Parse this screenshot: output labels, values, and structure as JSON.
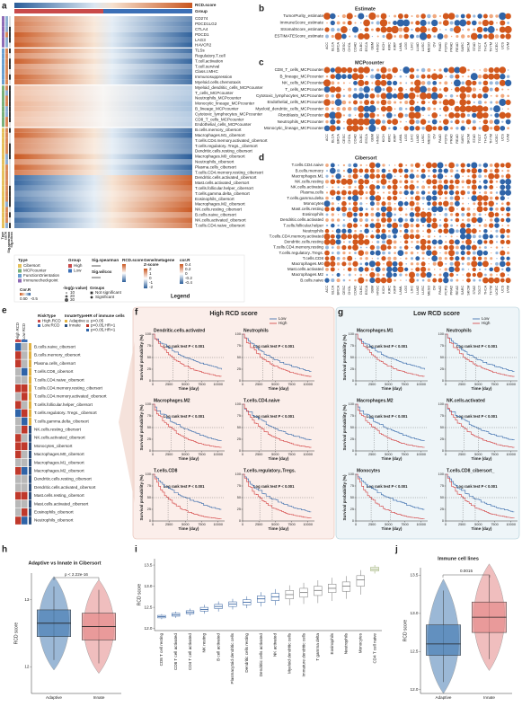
{
  "panel_a": {
    "letter": "a",
    "score_label": "RCD.score",
    "group_label": "Group",
    "rows": [
      "CD274",
      "PDCD1LG2",
      "CTLA4",
      "PDCD1",
      "LAG3",
      "HAVCR2",
      "TLSs",
      "Regulatory.T.cell",
      "T.cell.activation",
      "T.cell.survival",
      "Class.I.MHC",
      "Immunosuppression",
      "Myeloid.cells.chemotaxis",
      "Myeloid_dendritic_cells_MCPcounter",
      "T_cells_MCPcounter",
      "Neutrophils_MCPcounter",
      "Monocytic_lineage_MCPcounter",
      "B_lineage_MCPcounter",
      "Cytotoxic_lymphocytes_MCPcounter",
      "CD8_T_cells_MCPcounter",
      "Endothelial_cells_MCPcounter",
      "B.cells.memory_cibersort",
      "Macrophages.M1_cibersort",
      "T.cells.CD4.memory.activated_cibersort",
      "T.cells.regulatory..Tregs._cibersort",
      "Dendritic.cells.resting_cibersort",
      "Macrophages.M0_cibersort",
      "Neutrophils_cibersort",
      "Plasma.cells_cibersort",
      "T.cells.CD4.memory.resting_cibersort",
      "Dendritic.cells.activated_cibersort",
      "Mast.cells.activated_cibersort",
      "T.cells.follicular.helper_cibersort",
      "T.cells.gamma.delta_cibersort",
      "Eosinophils_cibersort",
      "Macrophages.M2_cibersort",
      "NK.cells.resting_cibersort",
      "B.cells.naive_cibersort",
      "NK.cells.activated_cibersort",
      "T.cells.CD4.naive_cibersort"
    ],
    "side_labels": [
      "Tpye",
      "cor.R",
      "Sig.spearman",
      "Sig.wilcox"
    ],
    "legend": {
      "type_title": "Tpye",
      "types": [
        "Cibersort",
        "MCPcounter",
        "FunctionOrientation",
        "Immunecheckpoint"
      ],
      "group_title": "Group",
      "groups": [
        "High",
        "Low"
      ],
      "spearman": "Sig.spearman",
      "wilcox": "Sig.wilcox",
      "score": "RCD.score",
      "z_title": "Gene/metagene",
      "z_sub": "Z-score",
      "z_ticks": [
        2,
        1,
        0,
        -1,
        -2
      ],
      "cor_title": "cor.R",
      "cor_ticks": [
        0.4,
        0.2,
        0,
        -0.2,
        -0.4
      ],
      "cor2_title": "Cor.R",
      "cor2_ticks": [
        0.5,
        0,
        -0.5
      ],
      "logp_title": "-log(p value)",
      "logp_ticks": [
        10,
        20,
        30
      ],
      "groups_title": "Groups",
      "sig": [
        "Not significant",
        "Significant"
      ],
      "legend_title": "Legend"
    }
  },
  "cancer_types": [
    "ACC",
    "BLCA",
    "BRCA",
    "CESC",
    "CHOL",
    "COAD",
    "DLBC",
    "ESCA",
    "GBM",
    "HNSC",
    "KICH",
    "KIRC",
    "KIRP",
    "LAML",
    "LGG",
    "LIHC",
    "LUAD",
    "LUSC",
    "MESO",
    "OV",
    "PAAD",
    "PCPG",
    "PRAD",
    "READ",
    "SARC",
    "SKCM",
    "STAD",
    "TGCT",
    "THCA",
    "THYM",
    "UCEC",
    "UCS",
    "UVM"
  ],
  "panel_b": {
    "letter": "b",
    "title": "Estimate",
    "rows": [
      "TumorPurity_estimate",
      "ImmuneScore_estimate",
      "StromalScore_estimate",
      "ESTIMATEScore_estimate"
    ]
  },
  "panel_c": {
    "letter": "c",
    "title": "MCPcounter",
    "rows": [
      "CD8_T_cells_MCPcounter",
      "B_lineage_MCPcounter",
      "NK_cells_MCPcounter",
      "T_cells_MCPcounter",
      "Cytotoxic_lymphocytes_MCPcounter",
      "Endothelial_cells_MCPcounter",
      "Myeloid_dendritic_cells_MCPcounter",
      "Fibroblasts_MCPcounter",
      "Neutrophils_MCPcounter",
      "Monocytic_lineage_MCPcounter"
    ]
  },
  "panel_d": {
    "letter": "d",
    "title": "Cibersort",
    "rows": [
      "T.cells.CD4.naive",
      "B.cells.memory",
      "Macrophages.M1",
      "NK.cells.resting",
      "NK.cells.activated",
      "Plasma.cells",
      "T.cells.gamma.delta",
      "Monocytes",
      "Mast.cells.resting",
      "Eosinophils",
      "Dendritic.cells.activated",
      "T.cells.follicular.helper",
      "Neutrophils",
      "T.cells.CD4.memory.activated",
      "Dendritic.cells.resting",
      "T.cells.CD4.memory.resting",
      "T.cells.regulatory..Tregs.",
      "T.cells.CD8",
      "Macrophages.M0",
      "Mast.cells.activated",
      "Macrophages.M2",
      "B.cells.naive"
    ]
  },
  "panel_e": {
    "letter": "e",
    "columns": [
      "High RCD",
      "Low RCD"
    ],
    "risk_title": "RiskType",
    "risk": [
      "High.RCD",
      "Low.RCD"
    ],
    "innate_title": "InnateType",
    "innate": [
      "Adaptive",
      "Innate"
    ],
    "hr_title": "HR of immune cells",
    "hr": [
      "p>0.05",
      "p<0.05,HR>1",
      "p<0.05,HR<1"
    ],
    "rows": [
      "B.cells.naive_cibersort",
      "B.cells.memory_cibersort",
      "Plasma.cells_cibersort",
      "T.cells.CD8_cibersort",
      "T.cells.CD4.naive_cibersort",
      "T.cells.CD4.memory.resting_cibersort",
      "T.cells.CD4.memory.activated_cibersort",
      "T.cells.follicular.helper_cibersort",
      "T.cells.regulatory..Tregs._cibersort",
      "T.cells.gamma.delta_cibersort",
      "NK.cells.resting_cibersort",
      "NK.cells.activated_cibersort",
      "Monocytes_cibersort",
      "Macrophages.M0_cibersort",
      "Macrophages.M1_cibersort",
      "Macrophages.M2_cibersort",
      "Dendritic.cells.resting_cibersort",
      "Dendritic.cells.activated_cibersort",
      "Mast.cells.resting_cibersort",
      "Mast.cells.activated_cibersort",
      "Eosinophils_cibersort",
      "Neutrophils_cibersort"
    ]
  },
  "panel_f": {
    "letter": "f",
    "title": "High RCD score",
    "legend": [
      "Low",
      "High"
    ],
    "ylabel": "Survival probability (%)",
    "xlabel": "Time (day)",
    "test": "Log rank test P < 0.001",
    "xticks": [
      0,
      2500,
      5000,
      7500,
      10000
    ],
    "yticks": [
      0,
      25,
      50,
      75,
      100
    ],
    "xlim": [
      0,
      11000
    ],
    "ylim": [
      0,
      100
    ],
    "plots": [
      "Dendritic.cells.activated",
      "Neutrophils",
      "Macrophages.M2",
      "T.cells.CD4.naive",
      "T.cells.CD8",
      "T.cells.regulatory..Tregs."
    ]
  },
  "panel_g": {
    "letter": "g",
    "title": "Low RCD score",
    "legend": [
      "Low",
      "High"
    ],
    "ylabel": "Survival probability (%)",
    "xlabel": "Time (day)",
    "test": "Log rank test P < 0.001",
    "xticks": [
      0,
      2500,
      5000,
      7500,
      10000
    ],
    "yticks": [
      0,
      25,
      50,
      75,
      100
    ],
    "xlim": [
      0,
      11000
    ],
    "ylim": [
      0,
      100
    ],
    "plots": [
      "Macrophages.M1",
      "Neutrophils",
      "Macrophages.M2",
      "NK.cells.activated",
      "Monocytes",
      "T.cells.CD8_cibersort_"
    ]
  },
  "panel_h": {
    "letter": "h",
    "title": "Adaptive vs Innate in Cibersort",
    "pvalue": "p < 2.22e-16",
    "ylabel": "RCD score",
    "categories": [
      "Adaptive",
      "Innate"
    ],
    "ylim": [
      11.6,
      13.4
    ],
    "yticks": [
      12,
      13
    ],
    "colors": [
      "#4a7fb5",
      "#e58a8a"
    ],
    "boxes": [
      [
        12.1,
        12.45,
        12.65,
        12.85,
        13.2
      ],
      [
        12.05,
        12.4,
        12.6,
        12.8,
        13.15
      ]
    ]
  },
  "panel_i": {
    "letter": "i",
    "ylabel": "RCD score",
    "ylim": [
      11.95,
      13.65
    ],
    "yticks": [
      {
        "value": 12,
        "label": "12.0"
      },
      {
        "value": 12.5,
        "label": "12.5"
      },
      {
        "value": 13,
        "label": "13.0"
      },
      {
        "value": 13.5,
        "label": "13.5"
      }
    ],
    "categories": [
      "CD8 T cell resting",
      "CD8 T cell activated",
      "CD4 T cell activated",
      "NK resting",
      "B cell activated",
      "Plasmacytoid dendritic cells",
      "Dendritic cells resting",
      "Dendritic cells activated",
      "NK activated",
      "Myeloid dendritic cells",
      "Immature dendritic cells",
      "T gamma delta",
      "Eosinophils",
      "Neutrophils",
      "Monocytes",
      "CD4 T cell naive"
    ],
    "colors": [
      "#2f5d9e",
      "#2f5d9e",
      "#2f5d9e",
      "#2f5d9e",
      "#2f5d9e",
      "#2f5d9e",
      "#2f5d9e",
      "#2f5d9e",
      "#2f5d9e",
      "#777777",
      "#777777",
      "#777777",
      "#777777",
      "#777777",
      "#777777",
      "#8aa05a"
    ],
    "boxes": [
      [
        12.22,
        12.25,
        12.28,
        12.31,
        12.34
      ],
      [
        12.25,
        12.29,
        12.32,
        12.36,
        12.4
      ],
      [
        12.3,
        12.35,
        12.38,
        12.42,
        12.47
      ],
      [
        12.35,
        12.41,
        12.45,
        12.5,
        12.56
      ],
      [
        12.4,
        12.47,
        12.52,
        12.57,
        12.64
      ],
      [
        12.45,
        12.52,
        12.58,
        12.63,
        12.7
      ],
      [
        12.48,
        12.56,
        12.62,
        12.68,
        12.76
      ],
      [
        12.52,
        12.62,
        12.7,
        12.77,
        12.86
      ],
      [
        12.55,
        12.66,
        12.75,
        12.83,
        12.93
      ],
      [
        12.55,
        12.7,
        12.8,
        12.9,
        13.02
      ],
      [
        12.58,
        12.74,
        12.85,
        12.95,
        13.08
      ],
      [
        12.6,
        12.78,
        12.9,
        13.0,
        13.14
      ],
      [
        12.65,
        12.85,
        12.95,
        13.05,
        13.2
      ],
      [
        12.7,
        12.88,
        13.0,
        13.1,
        13.24
      ],
      [
        12.8,
        13.0,
        13.15,
        13.25,
        13.38
      ],
      [
        13.3,
        13.36,
        13.4,
        13.45,
        13.5
      ]
    ]
  },
  "panel_j": {
    "letter": "j",
    "title": "Immune cell lines",
    "pvalue": "0.0015",
    "ylabel": "RCD score",
    "categories": [
      "Adaptive",
      "Innate"
    ],
    "ylim": [
      11.95,
      13.6
    ],
    "yticks": [
      {
        "value": 12,
        "label": "12.0"
      },
      {
        "value": 12.5,
        "label": "12.5"
      },
      {
        "value": 13,
        "label": "13.0"
      },
      {
        "value": 13.5,
        "label": "13.5"
      }
    ],
    "colors": [
      "#4a7fb5",
      "#e58a8a"
    ],
    "boxes": [
      [
        12.1,
        12.45,
        12.6,
        12.85,
        13.3
      ],
      [
        12.4,
        12.75,
        12.95,
        13.15,
        13.5
      ]
    ]
  }
}
